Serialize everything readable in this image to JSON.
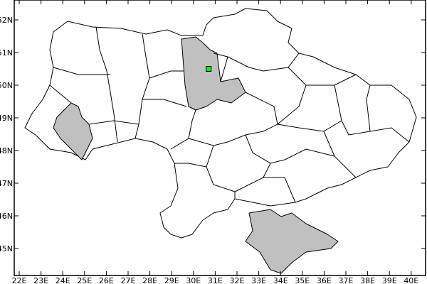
{
  "map": {
    "x_ticks": [
      "22E",
      "23E",
      "24E",
      "25E",
      "26E",
      "27E",
      "28E",
      "29E",
      "30E",
      "31E",
      "32E",
      "33E",
      "34E",
      "35E",
      "36E",
      "37E",
      "38E",
      "39E",
      "40E"
    ],
    "y_ticks": [
      "52N",
      "51N",
      "50N",
      "49N",
      "48N",
      "47N",
      "46N",
      "45N"
    ],
    "lon_range": [
      21.8,
      40.6
    ],
    "lat_range": [
      44.2,
      52.6
    ],
    "highlighted_regions": [
      "Kyiv Oblast",
      "Ivano-Frankivsk Oblast",
      "Crimea"
    ],
    "marker": {
      "lon": 30.7,
      "lat": 50.5,
      "color": "#00ff00"
    },
    "colors": {
      "highlight": "#c0c0c0",
      "border": "#000000",
      "background": "#ffffff"
    }
  }
}
